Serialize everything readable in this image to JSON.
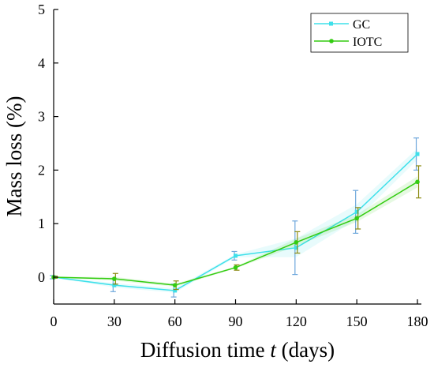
{
  "chart_data": {
    "type": "line",
    "xlabel_main": "Diffusion time ",
    "xlabel_var": "t",
    "xlabel_unit": " (days)",
    "ylabel": "Mass loss (%)",
    "xlim": [
      0,
      180
    ],
    "ylim": [
      -0.5,
      5
    ],
    "xticks": [
      0,
      30,
      60,
      90,
      120,
      150,
      180
    ],
    "yticks": [
      0,
      1,
      2,
      3,
      4,
      5
    ],
    "x": [
      0,
      30,
      60,
      90,
      120,
      150,
      180
    ],
    "legend_position": "top-right",
    "series": [
      {
        "name": "GC",
        "color": "#3ee0ea",
        "error_color": "#6fa8dc",
        "values": [
          0,
          -0.15,
          -0.25,
          0.4,
          0.55,
          1.22,
          2.3
        ],
        "errors": [
          0.03,
          0.12,
          0.12,
          0.08,
          0.5,
          0.4,
          0.3
        ]
      },
      {
        "name": "IOTC",
        "color": "#33cc11",
        "error_color": "#8a8a10",
        "values": [
          0,
          -0.03,
          -0.15,
          0.18,
          0.65,
          1.1,
          1.78
        ],
        "errors": [
          0.02,
          0.1,
          0.08,
          0.05,
          0.2,
          0.2,
          0.3
        ]
      }
    ]
  }
}
